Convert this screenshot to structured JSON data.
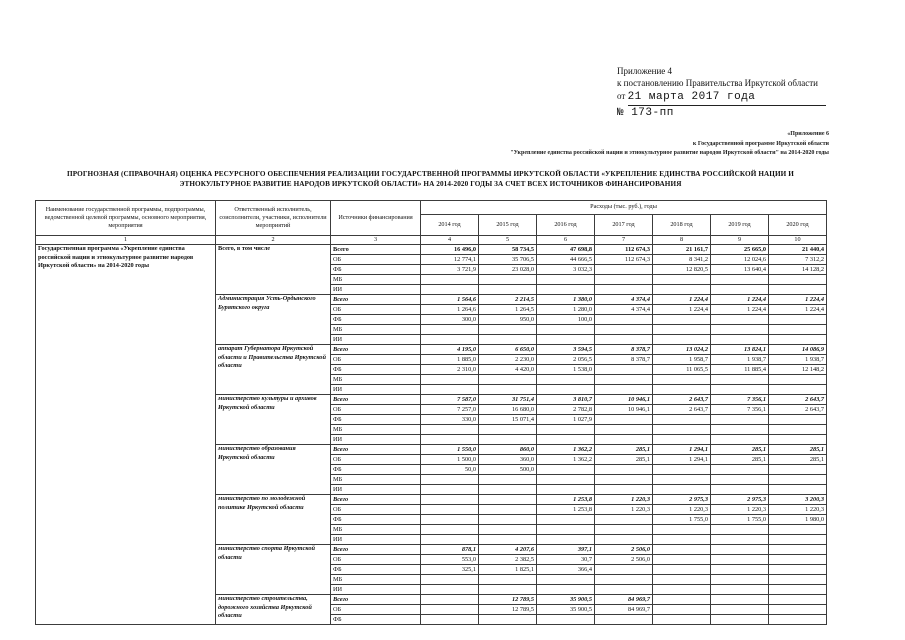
{
  "appendix": {
    "line1": "Приложение 4",
    "line2": "к постановлению Правительства Иркутской области",
    "date_prefix": "от",
    "date_value": "21 марта 2017 года",
    "number_value": "№ 173-пп"
  },
  "sub_appendix": {
    "line1": "«Приложение 6",
    "line2": "к Государственной программе Иркутской области",
    "line3": "\"Укрепление единства российской нации и этнокультурное развитие народов Иркутской области\" на 2014-2020 годы"
  },
  "title": "ПРОГНОЗНАЯ (СПРАВОЧНАЯ) ОЦЕНКА РЕСУРСНОГО ОБЕСПЕЧЕНИЯ РЕАЛИЗАЦИИ ГОСУДАРСТВЕННОЙ ПРОГРАММЫ ИРКУТСКОЙ ОБЛАСТИ «УКРЕПЛЕНИЕ ЕДИНСТВА РОССИЙСКОЙ НАЦИИ И ЭТНОКУЛЬТУРНОЕ РАЗВИТИЕ НАРОДОВ ИРКУТСКОЙ ОБЛАСТИ» НА 2014-2020 ГОДЫ ЗА СЧЕТ ВСЕХ ИСТОЧНИКОВ ФИНАНСИРОВАНИЯ",
  "table": {
    "headers": {
      "col1": "Наименование государственной программы, подпрограммы, ведомственной целевой программы, основного мероприятия, мероприятия",
      "col2": "Ответственный исполнитель, соисполнители, участники, исполнители мероприятий",
      "col3": "Источники финансирования",
      "expenses": "Расходы (тыс. руб.), годы",
      "years": [
        "2014 год",
        "2015 год",
        "2016 год",
        "2017 год",
        "2018 год",
        "2019 год",
        "2020 год"
      ],
      "numbers": [
        "1",
        "2",
        "3",
        "4",
        "5",
        "6",
        "7",
        "8",
        "9",
        "10"
      ]
    },
    "program_name": "Государственная программа «Укрепление единства российской нации и этнокультурное развитие народов Иркутской области» на 2014-2020 годы",
    "groups": [
      {
        "executor": "Всего, в том числе",
        "rows": [
          {
            "source": "Всего",
            "total": true,
            "values": [
              "16 496,0",
              "58 734,5",
              "47 698,8",
              "112 674,3",
              "21 161,7",
              "25 665,0",
              "21 440,4"
            ]
          },
          {
            "source": "ОБ",
            "values": [
              "12 774,1",
              "35 706,5",
              "44 666,5",
              "112 674,3",
              "8 341,2",
              "12 024,6",
              "7 312,2"
            ]
          },
          {
            "source": "ФБ",
            "values": [
              "3 721,9",
              "23 028,0",
              "3 032,3",
              "",
              "12 820,5",
              "13 640,4",
              "14 128,2"
            ]
          },
          {
            "source": "МБ",
            "values": [
              "",
              "",
              "",
              "",
              "",
              "",
              ""
            ]
          },
          {
            "source": "ИИ",
            "values": [
              "",
              "",
              "",
              "",
              "",
              "",
              ""
            ]
          }
        ]
      },
      {
        "executor": "Администрация Усть-Ордынского Бурятского округа",
        "rows": [
          {
            "source": "Всего",
            "total": true,
            "values": [
              "1 564,6",
              "2 214,5",
              "1 380,0",
              "4 374,4",
              "1 224,4",
              "1 224,4",
              "1 224,4"
            ]
          },
          {
            "source": "ОБ",
            "values": [
              "1 264,6",
              "1 264,5",
              "1 280,0",
              "4 374,4",
              "1 224,4",
              "1 224,4",
              "1 224,4"
            ]
          },
          {
            "source": "ФБ",
            "values": [
              "300,0",
              "950,0",
              "100,0",
              "",
              "",
              "",
              ""
            ]
          },
          {
            "source": "МБ",
            "values": [
              "",
              "",
              "",
              "",
              "",
              "",
              ""
            ]
          },
          {
            "source": "ИИ",
            "values": [
              "",
              "",
              "",
              "",
              "",
              "",
              ""
            ]
          }
        ]
      },
      {
        "executor": "аппарат Губернатора Иркутской области и Правительства Иркутской области",
        "rows": [
          {
            "source": "Всего",
            "total": true,
            "values": [
              "4 195,0",
              "6 650,0",
              "3 594,5",
              "8 378,7",
              "13 024,2",
              "13 824,1",
              "14 086,9"
            ]
          },
          {
            "source": "ОБ",
            "values": [
              "1 885,0",
              "2 230,0",
              "2 056,5",
              "8 378,7",
              "1 958,7",
              "1 938,7",
              "1 938,7"
            ]
          },
          {
            "source": "ФБ",
            "values": [
              "2 310,0",
              "4 420,0",
              "1 538,0",
              "",
              "11 065,5",
              "11 885,4",
              "12 148,2"
            ]
          },
          {
            "source": "МБ",
            "values": [
              "",
              "",
              "",
              "",
              "",
              "",
              ""
            ]
          },
          {
            "source": "ИИ",
            "values": [
              "",
              "",
              "",
              "",
              "",
              "",
              ""
            ]
          }
        ]
      },
      {
        "executor": "министерство культуры и архивов Иркутской области",
        "rows": [
          {
            "source": "Всего",
            "total": true,
            "values": [
              "7 587,0",
              "31 751,4",
              "3 810,7",
              "10 946,1",
              "2 643,7",
              "7 356,1",
              "2 643,7"
            ]
          },
          {
            "source": "ОБ",
            "values": [
              "7 257,0",
              "16 680,0",
              "2 782,8",
              "10 946,1",
              "2 643,7",
              "7 356,1",
              "2 643,7"
            ]
          },
          {
            "source": "ФБ",
            "values": [
              "330,0",
              "15 071,4",
              "1 027,9",
              "",
              "",
              "",
              ""
            ]
          },
          {
            "source": "МБ",
            "values": [
              "",
              "",
              "",
              "",
              "",
              "",
              ""
            ]
          },
          {
            "source": "ИИ",
            "values": [
              "",
              "",
              "",
              "",
              "",
              "",
              ""
            ]
          }
        ]
      },
      {
        "executor": "министерство образования Иркутской области",
        "rows": [
          {
            "source": "Всего",
            "total": true,
            "values": [
              "1 550,0",
              "860,0",
              "1 362,2",
              "285,1",
              "1 294,1",
              "285,1",
              "285,1"
            ]
          },
          {
            "source": "ОБ",
            "values": [
              "1 500,0",
              "360,0",
              "1 362,2",
              "285,1",
              "1 294,1",
              "285,1",
              "285,1"
            ]
          },
          {
            "source": "ФБ",
            "values": [
              "50,0",
              "500,0",
              "",
              "",
              "",
              "",
              ""
            ]
          },
          {
            "source": "МБ",
            "values": [
              "",
              "",
              "",
              "",
              "",
              "",
              ""
            ]
          },
          {
            "source": "ИИ",
            "values": [
              "",
              "",
              "",
              "",
              "",
              "",
              ""
            ]
          }
        ]
      },
      {
        "executor": "министерство по молодежной политике Иркутской области",
        "rows": [
          {
            "source": "Всего",
            "total": true,
            "values": [
              "",
              "",
              "1 253,8",
              "1 220,3",
              "2 975,3",
              "2 975,3",
              "3 200,3"
            ]
          },
          {
            "source": "ОБ",
            "values": [
              "",
              "",
              "1 253,8",
              "1 220,3",
              "1 220,3",
              "1 220,3",
              "1 220,3"
            ]
          },
          {
            "source": "ФБ",
            "values": [
              "",
              "",
              "",
              "",
              "1 755,0",
              "1 755,0",
              "1 980,0"
            ]
          },
          {
            "source": "МБ",
            "values": [
              "",
              "",
              "",
              "",
              "",
              "",
              ""
            ]
          },
          {
            "source": "ИИ",
            "values": [
              "",
              "",
              "",
              "",
              "",
              "",
              ""
            ]
          }
        ]
      },
      {
        "executor": "министерство спорта Иркутской области",
        "rows": [
          {
            "source": "Всего",
            "total": true,
            "values": [
              "878,1",
              "4 207,6",
              "397,1",
              "2 506,0",
              "",
              "",
              ""
            ]
          },
          {
            "source": "ОБ",
            "values": [
              "553,0",
              "2 382,5",
              "30,7",
              "2 506,0",
              "",
              "",
              ""
            ]
          },
          {
            "source": "ФБ",
            "values": [
              "325,1",
              "1 825,1",
              "366,4",
              "",
              "",
              "",
              ""
            ]
          },
          {
            "source": "МБ",
            "values": [
              "",
              "",
              "",
              "",
              "",
              "",
              ""
            ]
          },
          {
            "source": "ИИ",
            "values": [
              "",
              "",
              "",
              "",
              "",
              "",
              ""
            ]
          }
        ]
      },
      {
        "executor": "министерство строительства, дорожного хозяйства Иркутской области",
        "rows": [
          {
            "source": "Всего",
            "total": true,
            "values": [
              "",
              "12 789,5",
              "35 900,5",
              "84 969,7",
              "",
              "",
              ""
            ]
          },
          {
            "source": "ОБ",
            "values": [
              "",
              "12 789,5",
              "35 900,5",
              "84 969,7",
              "",
              "",
              ""
            ]
          },
          {
            "source": "ФБ",
            "values": [
              "",
              "",
              "",
              "",
              "",
              "",
              ""
            ]
          }
        ]
      }
    ]
  }
}
